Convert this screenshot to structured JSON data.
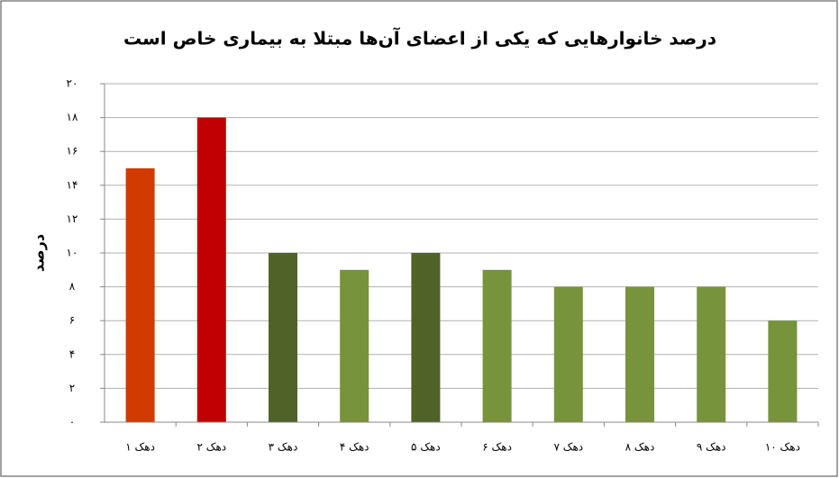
{
  "chart_data": {
    "type": "bar",
    "title": "درصد خانوارهایی که یکی از اعضای آن‌ها مبتلا به بیماری خاص است",
    "y_label": "درصد",
    "categories": [
      "دهک ۱",
      "دهک ۲",
      "دهک ۳",
      "دهک ۴",
      "دهک ۵",
      "دهک ۶",
      "دهک ۷",
      "دهک ۸",
      "دهک ۹",
      "دهک ۱۰"
    ],
    "values": [
      15,
      18,
      10,
      9,
      10,
      9,
      8,
      8,
      8,
      6
    ],
    "colors": [
      "#d13a00",
      "#c00000",
      "#4f6228",
      "#77933c",
      "#4f6228",
      "#77933c",
      "#77933c",
      "#77933c",
      "#77933c",
      "#77933c"
    ],
    "ylim": [
      0,
      20
    ],
    "yticks": [
      {
        "value": 0,
        "label": "۰"
      },
      {
        "value": 2,
        "label": "۲"
      },
      {
        "value": 4,
        "label": "۴"
      },
      {
        "value": 6,
        "label": "۶"
      },
      {
        "value": 8,
        "label": "۸"
      },
      {
        "value": 10,
        "label": "۱۰"
      },
      {
        "value": 12,
        "label": "۱۲"
      },
      {
        "value": 14,
        "label": "۱۴"
      },
      {
        "value": 16,
        "label": "۱۶"
      },
      {
        "value": 18,
        "label": "۱۸"
      },
      {
        "value": 20,
        "label": "۲۰"
      }
    ],
    "grid": true
  }
}
